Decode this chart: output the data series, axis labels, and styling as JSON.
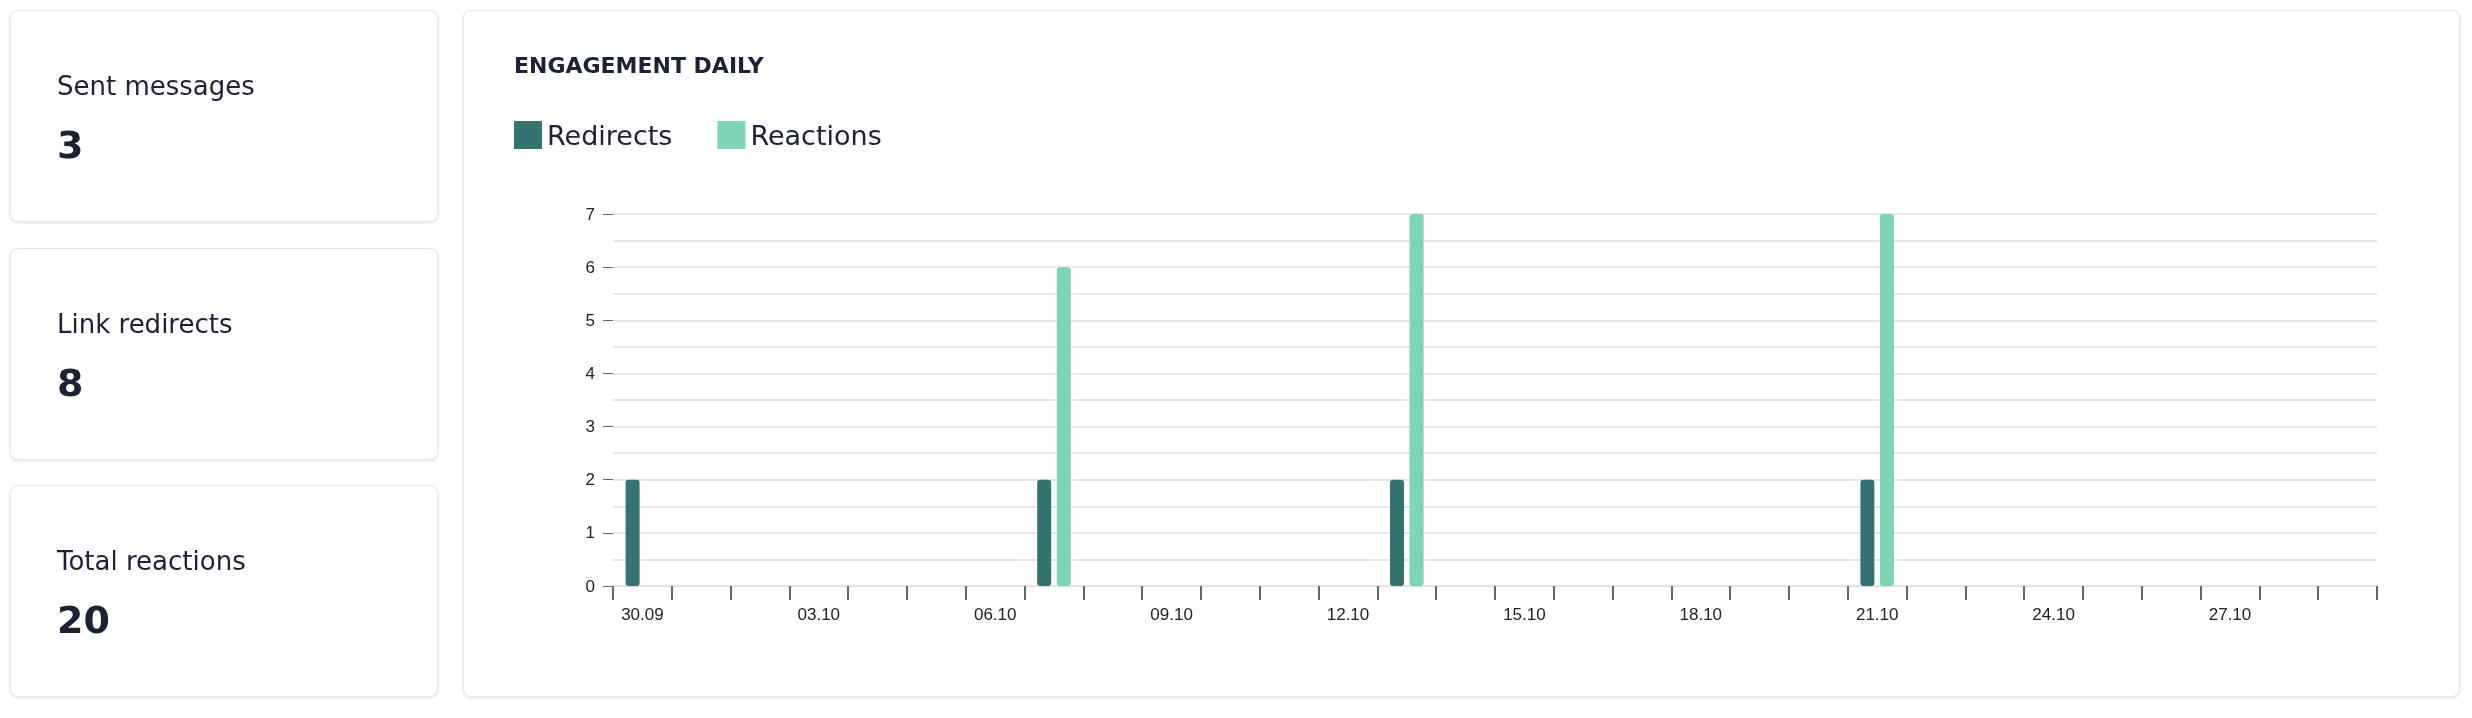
{
  "chart_data": [
    {
      "type": "other",
      "title": "Sent messages",
      "annotations": [
        "3"
      ]
    },
    {
      "type": "other",
      "title": "Link redirects",
      "annotations": [
        "8"
      ]
    },
    {
      "type": "other",
      "title": "Total reactions",
      "annotations": [
        "20"
      ]
    },
    {
      "type": "bar",
      "title": "ENGAGEMENT DAILY",
      "categories": [
        "30.09",
        null,
        null,
        "03.10",
        null,
        null,
        "06.10",
        null,
        null,
        "09.10",
        null,
        null,
        "12.10",
        null,
        null,
        "15.10",
        null,
        null,
        "18.10",
        null,
        null,
        "21.10",
        null,
        null,
        "24.10",
        null,
        null,
        "27.10",
        null,
        null
      ],
      "series": [
        {
          "name": "Redirects",
          "color": "#347370",
          "values": [
            2,
            0,
            0,
            0,
            0,
            0,
            0,
            2,
            0,
            0,
            0,
            0,
            0,
            2,
            0,
            0,
            0,
            0,
            0,
            0,
            0,
            2,
            0,
            0,
            0,
            0,
            0,
            0,
            0,
            0
          ]
        },
        {
          "name": "Reactions",
          "color": "#7fd4b8",
          "values": [
            0,
            0,
            0,
            0,
            0,
            0,
            0,
            6,
            0,
            0,
            0,
            0,
            0,
            7,
            0,
            0,
            0,
            0,
            0,
            0,
            0,
            7,
            0,
            0,
            0,
            0,
            0,
            0,
            0,
            0
          ]
        }
      ],
      "ylim": [
        0,
        7
      ],
      "yticks": [
        0,
        1,
        2,
        3,
        4,
        5,
        6,
        7
      ],
      "grid": "y",
      "legend": "top left"
    }
  ]
}
